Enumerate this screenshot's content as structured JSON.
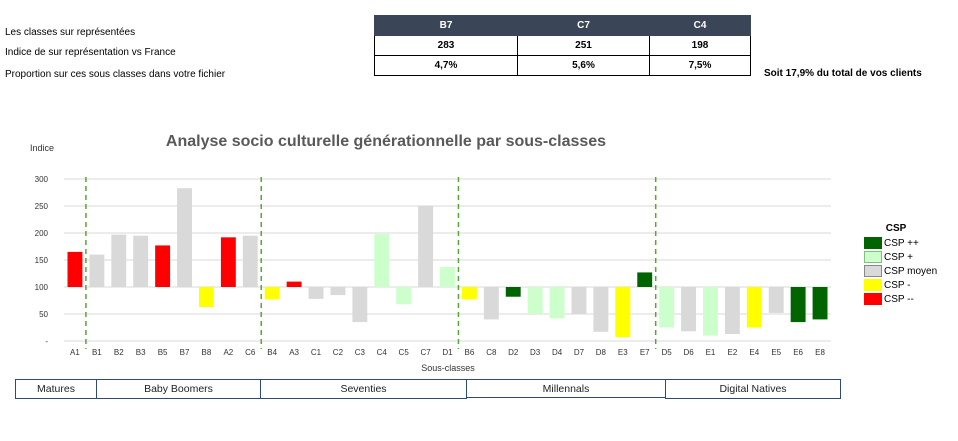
{
  "summary": {
    "row_labels": [
      "Les  classes sur représentées",
      "Indice de sur représentation vs France",
      "Proportion sur ces sous classes dans votre fichier"
    ],
    "columns": [
      "B7",
      "C7",
      "C4"
    ],
    "indices": [
      "283",
      "251",
      "198"
    ],
    "proportions": [
      "4,7%",
      "5,6%",
      "7,5%"
    ],
    "note": "Soit 17,9% du total de vos clients"
  },
  "colors": {
    "csp_pp": "#006400",
    "csp_p": "#ccffcc",
    "csp_moyen": "#d9d9d9",
    "csp_m": "#ffff00",
    "csp_mm": "#ff0000",
    "header": "#3a4557",
    "separator": "#55a832"
  },
  "chart_data": {
    "type": "bar",
    "title": "Analyse socio culturelle générationnelle par sous-classes",
    "xlabel": "Sous-classes",
    "ylabel": "Indice",
    "ylim": [
      0,
      300
    ],
    "yticks": [
      "-",
      "50",
      "100",
      "150",
      "200",
      "250",
      "300"
    ],
    "baseline": 100,
    "grid": true,
    "categories": [
      "A1",
      "B1",
      "B2",
      "B3",
      "B5",
      "B7",
      "B8",
      "A2",
      "C6",
      "B4",
      "A3",
      "C1",
      "C2",
      "C3",
      "C4",
      "C5",
      "C7",
      "D1",
      "B6",
      "C8",
      "D2",
      "D3",
      "D4",
      "D7",
      "D8",
      "E3",
      "E7",
      "D5",
      "D6",
      "E1",
      "E2",
      "E4",
      "E5",
      "E6",
      "E8"
    ],
    "values": [
      165,
      160,
      197,
      195,
      177,
      283,
      63,
      192,
      195,
      77,
      110,
      78,
      85,
      35,
      198,
      68,
      251,
      137,
      77,
      40,
      82,
      50,
      42,
      50,
      17,
      7,
      127,
      25,
      18,
      10,
      13,
      25,
      52,
      35,
      40
    ],
    "csp": [
      "csp_mm",
      "csp_moyen",
      "csp_moyen",
      "csp_moyen",
      "csp_mm",
      "csp_moyen",
      "csp_m",
      "csp_mm",
      "csp_moyen",
      "csp_m",
      "csp_mm",
      "csp_moyen",
      "csp_moyen",
      "csp_moyen",
      "csp_p",
      "csp_p",
      "csp_moyen",
      "csp_p",
      "csp_m",
      "csp_moyen",
      "csp_pp",
      "csp_p",
      "csp_p",
      "csp_moyen",
      "csp_moyen",
      "csp_m",
      "csp_pp",
      "csp_p",
      "csp_moyen",
      "csp_p",
      "csp_moyen",
      "csp_m",
      "csp_moyen",
      "csp_pp",
      "csp_pp"
    ],
    "legend": {
      "title": "CSP",
      "placement": "right",
      "items": [
        {
          "key": "csp_pp",
          "label": "CSP ++"
        },
        {
          "key": "csp_p",
          "label": "CSP +"
        },
        {
          "key": "csp_moyen",
          "label": "CSP moyen"
        },
        {
          "key": "csp_m",
          "label": "CSP -"
        },
        {
          "key": "csp_mm",
          "label": "CSP --"
        }
      ]
    },
    "separators_after": [
      "C6",
      "D1",
      "E7"
    ]
  },
  "generations": [
    "Matures",
    "Baby Boomers",
    "Seventies",
    "Millennals",
    "Digital Natives"
  ]
}
